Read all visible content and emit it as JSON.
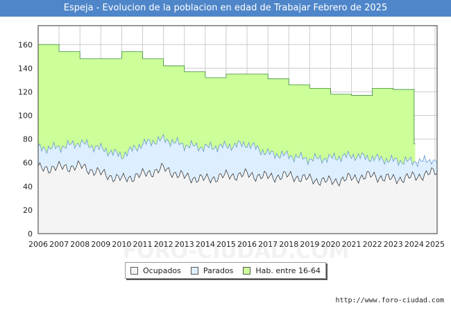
{
  "chart_data": {
    "type": "area",
    "title": "Espeja - Evolucion de la poblacion en edad de Trabajar Febrero de 2025",
    "xlabel": "",
    "ylabel": "",
    "ylim": [
      0,
      176
    ],
    "yticks": [
      0,
      20,
      40,
      60,
      80,
      100,
      120,
      140,
      160
    ],
    "xlim": [
      2006,
      2025.1
    ],
    "xticks": [
      "2006",
      "2007",
      "2008",
      "2009",
      "2010",
      "2011",
      "2012",
      "2013",
      "2014",
      "2015",
      "2016",
      "2017",
      "2018",
      "2019",
      "2020",
      "2021",
      "2022",
      "2023",
      "2024",
      "2025"
    ],
    "grid": true,
    "legend_position": "bottom-center",
    "series": [
      {
        "name": "Hab. entre 16-64",
        "kind": "annual-step",
        "color": "#ccff99",
        "line": "#3a8a3a",
        "years": [
          2006,
          2007,
          2008,
          2009,
          2010,
          2011,
          2012,
          2013,
          2014,
          2015,
          2016,
          2017,
          2018,
          2019,
          2020,
          2021,
          2022,
          2023,
          2024
        ],
        "values": [
          160,
          154,
          148,
          148,
          154,
          148,
          142,
          137,
          132,
          135,
          135,
          131,
          126,
          123,
          118,
          117,
          123,
          122,
          76
        ]
      },
      {
        "name": "Parados",
        "kind": "monthly-total",
        "color": "#ddeeff",
        "line": "#6699cc",
        "years": [
          2006,
          2007,
          2008,
          2009,
          2010,
          2011,
          2012,
          2013,
          2014,
          2015,
          2016,
          2017,
          2018,
          2019,
          2020,
          2021,
          2022,
          2023,
          2024,
          2025
        ],
        "values": [
          72,
          73,
          77,
          72,
          66,
          76,
          80,
          75,
          73,
          74,
          76,
          68,
          66,
          63,
          64,
          66,
          64,
          62,
          61,
          62
        ]
      },
      {
        "name": "Ocupados",
        "kind": "monthly",
        "color": "#f4f4f4",
        "line": "#222222",
        "years": [
          2006,
          2007,
          2008,
          2009,
          2010,
          2011,
          2012,
          2013,
          2014,
          2015,
          2016,
          2017,
          2018,
          2019,
          2020,
          2021,
          2022,
          2023,
          2024,
          2025
        ],
        "values": [
          55,
          56,
          57,
          51,
          46,
          50,
          55,
          48,
          46,
          49,
          50,
          48,
          49,
          46,
          44,
          47,
          49,
          46,
          48,
          52
        ]
      }
    ]
  },
  "legend": {
    "items": [
      {
        "label": "Ocupados",
        "color": "#f4f4f4"
      },
      {
        "label": "Parados",
        "color": "#ddeeff"
      },
      {
        "label": "Hab. entre 16-64",
        "color": "#ccff99"
      }
    ]
  },
  "footer": {
    "source": "http://www.foro-ciudad.com"
  },
  "watermark": "FORO-CIUDAD.COM"
}
